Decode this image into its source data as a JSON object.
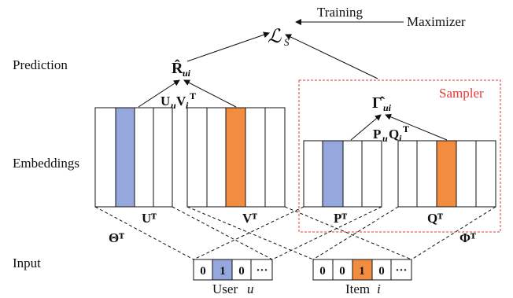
{
  "labels": {
    "prediction": "Prediction",
    "embeddings": "Embeddings",
    "input": "Input",
    "training": "Training",
    "maximizer": "Maximizer",
    "sampler": "Sampler",
    "user": "User",
    "user_var": "u",
    "item": "Item",
    "item_var": "i"
  },
  "math": {
    "loss": "ℒ",
    "loss_sub": "S",
    "R": "R̂",
    "R_sub": "ui",
    "UV_U": "U",
    "UV_u": "u",
    "UV_V": "V",
    "UV_i": "i",
    "UV_T": "T",
    "Gamma": "Γ̂",
    "Gamma_sub": "ui",
    "PQ_P": "P",
    "PQ_u": "u",
    "PQ_Q": "Q",
    "PQ_i": "i",
    "PQ_T": "T",
    "U_T": "Uᵀ",
    "V_T": "Vᵀ",
    "P_T": "Pᵀ",
    "Q_T": "Qᵀ",
    "Theta_T": "Θᵀ",
    "Phi_T": "Φᵀ"
  },
  "inputs": {
    "user_vector": [
      "0",
      "1",
      "0",
      "···"
    ],
    "item_vector": [
      "0",
      "0",
      "1",
      "0",
      "···"
    ]
  },
  "colors": {
    "user_highlight": "#94a8de",
    "item_highlight": "#f28d3f",
    "sampler_border": "#e53935"
  }
}
